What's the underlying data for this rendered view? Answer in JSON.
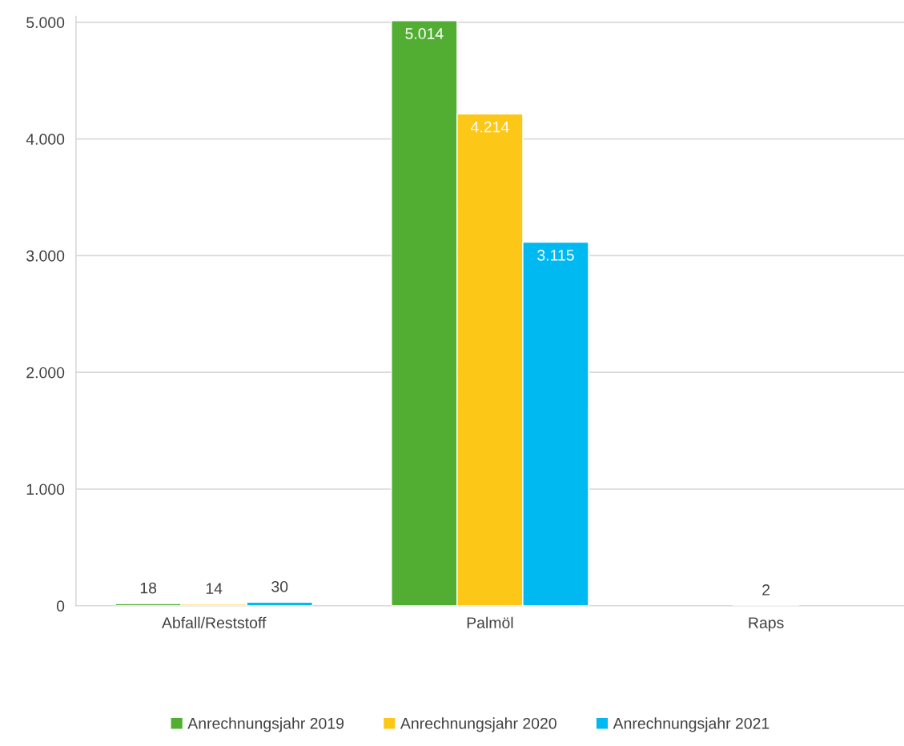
{
  "chart_data": {
    "type": "bar",
    "categories": [
      "Abfall/Reststoff",
      "Palmöl",
      "Raps"
    ],
    "series": [
      {
        "name": "Anrechnungsjahr 2019",
        "color": "#52ae32",
        "values": [
          18,
          5014,
          null
        ],
        "value_labels": [
          "18",
          "5.014",
          null
        ]
      },
      {
        "name": "Anrechnungsjahr 2020",
        "color": "#fdc718",
        "values": [
          14,
          4214,
          2
        ],
        "value_labels": [
          "14",
          "4.214",
          "2"
        ]
      },
      {
        "name": "Anrechnungsjahr 2021",
        "color": "#00b9f0",
        "values": [
          30,
          3115,
          null
        ],
        "value_labels": [
          "30",
          "3.115",
          null
        ]
      }
    ],
    "ylim": [
      0,
      5050
    ],
    "yticks": [
      0,
      {
        "value": 1000,
        "label": "1.000"
      },
      {
        "value": 2000,
        "label": "2.000"
      },
      {
        "value": 3000,
        "label": "3.000"
      },
      {
        "value": 4000,
        "label": "4.000"
      },
      {
        "value": 5000,
        "label": "5.000"
      }
    ],
    "grid": "y",
    "legend": "bottom"
  }
}
